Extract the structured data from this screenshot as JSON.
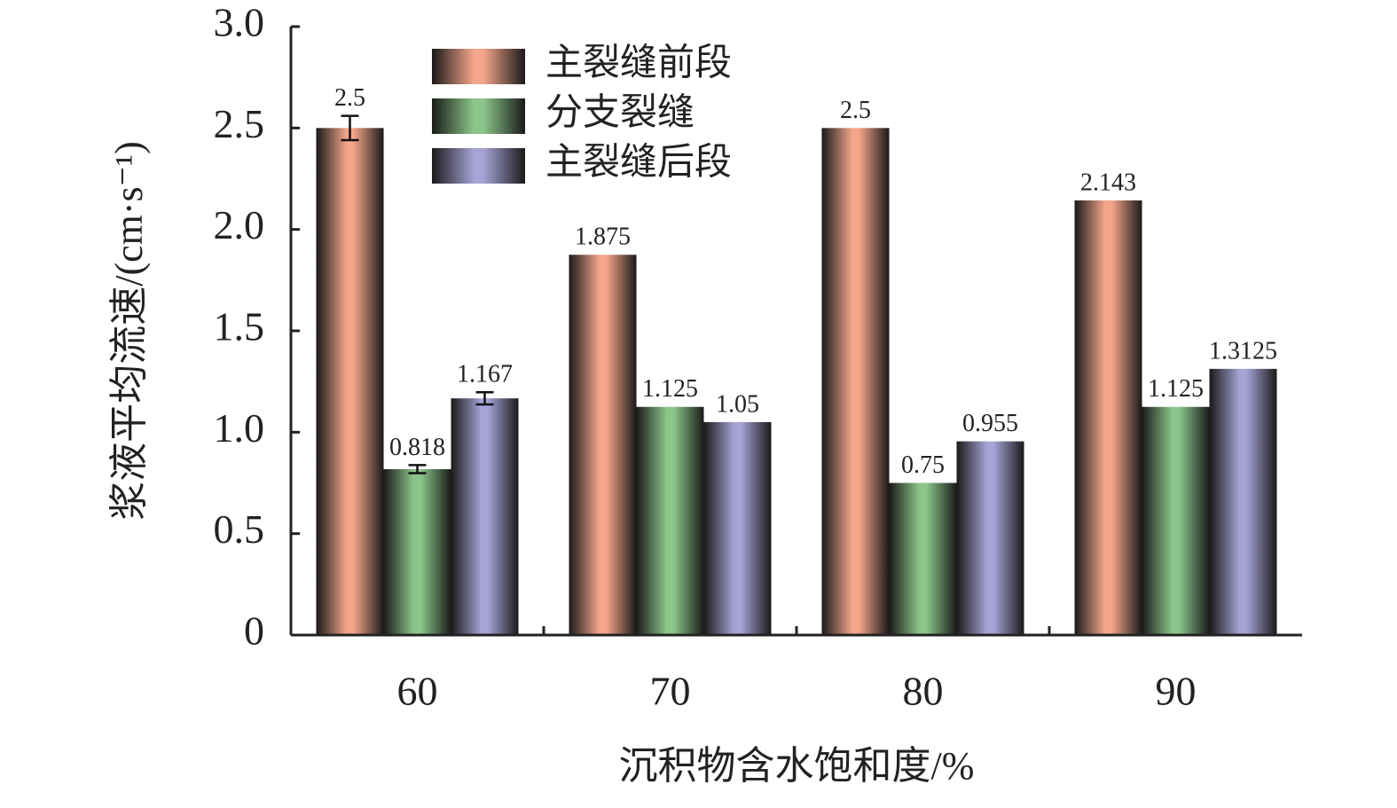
{
  "chart_data": {
    "type": "bar",
    "xlabel": "沉积物含水饱和度/%",
    "ylabel": "浆液平均流速/(cm·s⁻¹)",
    "categories": [
      "60",
      "70",
      "80",
      "90"
    ],
    "series": [
      {
        "name": "主裂缝前段",
        "color": "#f4a58a",
        "values": [
          2.5,
          1.875,
          2.5,
          2.143
        ],
        "errors": [
          0.06,
          null,
          null,
          null
        ]
      },
      {
        "name": "分支裂缝",
        "color": "#8cc68a",
        "values": [
          0.818,
          1.125,
          0.75,
          1.125
        ],
        "errors": [
          0.02,
          null,
          null,
          null
        ]
      },
      {
        "name": "主裂缝后段",
        "color": "#a6a3d6",
        "values": [
          1.167,
          1.05,
          0.955,
          1.3125
        ],
        "errors": [
          0.03,
          null,
          null,
          null
        ]
      }
    ],
    "ylim": [
      0,
      3
    ],
    "yticks": [
      0,
      0.5,
      {
        "value": 1,
        "label": "1.0"
      },
      1.5,
      {
        "value": 2,
        "label": "2.0"
      },
      2.5,
      {
        "value": 3,
        "label": "3.0"
      }
    ],
    "grid": false
  }
}
